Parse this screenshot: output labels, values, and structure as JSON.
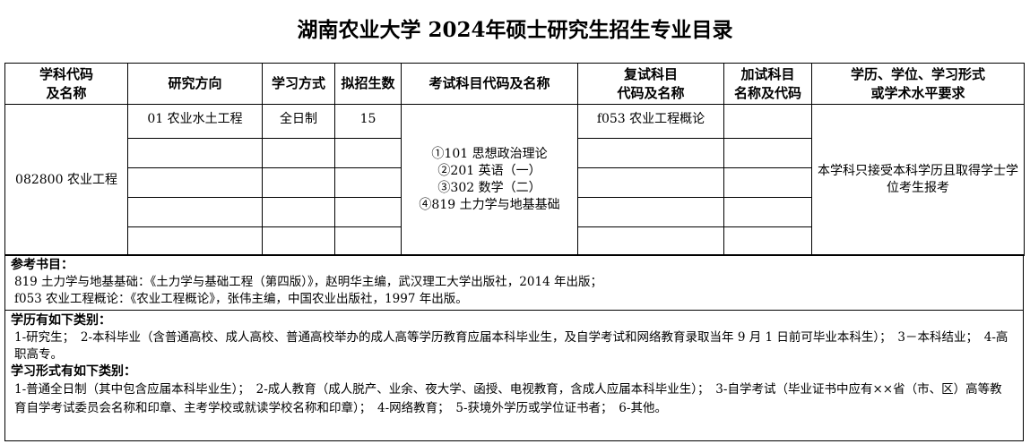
{
  "title": "湖南农业大学 2024年硕士研究生招生专业目录",
  "headers": [
    "学科代码\n及名称",
    "研究方向",
    "学习方式",
    "拟招生数",
    "考试科目代码及名称",
    "复试科目\n代码及名称",
    "加试科目\n名称及代码",
    "学历、学位、学习形式\n或学术水平要求"
  ],
  "row": {
    "discipline": "082800 农业工程",
    "direction": "01 农业水土工程",
    "mode": "全日制",
    "quota": "15",
    "exams": [
      "①101 思想政治理论",
      "②201 英语（一）",
      "③302 数学（二）",
      "④819 土力学与地基基础"
    ],
    "retest": "f053 农业工程概论",
    "extra": "",
    "requirement": "本学科只接受本科学历且取得学士学位考生报考"
  },
  "refs": {
    "title": "参考书目：",
    "lines": [
      "819 土力学与地基基础：《土力学与基础工程（第四版）》，赵明华主编，武汉理工大学出版社，2014 年出版；",
      "f053 农业工程概论：《农业工程概论》，张伟主编，中国农业出版社，1997 年出版。"
    ]
  },
  "edu": {
    "title": "学历有如下类别：",
    "text": "1-研究生；　2-本科毕业（含普通高校、成人高校、普通高校举办的成人高等学历教育应届本科毕业生，及自学考试和网络教育录取当年 9 月 1 日前可毕业本科生）；　3－本科结业；　4-高职高专。"
  },
  "study": {
    "title": "学习形式有如下类别：",
    "text": "1-普通全日制（其中包含应届本科毕业生）；　2-成人教育（成人脱产、业余、夜大学、函授、电视教育，含成人应届本科毕业生）；　3-自学考试（毕业证书中应有××省（市、区）高等教育自学考试委员会名称和印章、主考学校或就读学校名称和印章）；　4-网络教育；　5-获境外学历或学位证书者；　6-其他。"
  }
}
